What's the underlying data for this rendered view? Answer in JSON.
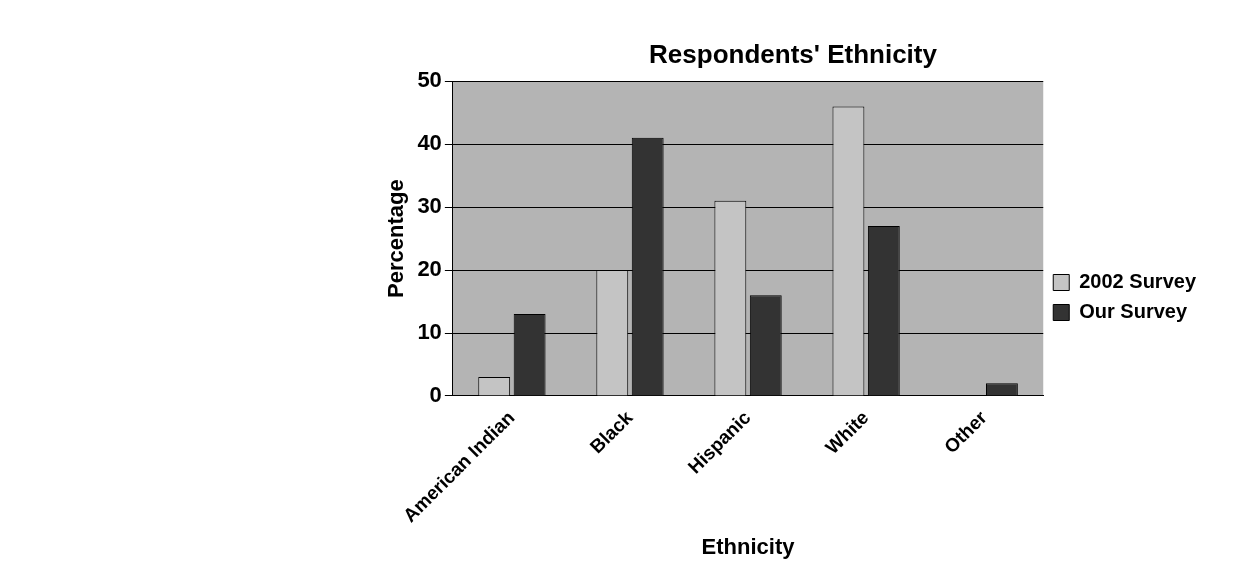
{
  "chart_data": {
    "type": "bar",
    "title": "Respondents' Ethnicity",
    "xlabel": "Ethnicity",
    "ylabel": "Percentage",
    "categories": [
      "American Indian",
      "Black",
      "Hispanic",
      "White",
      "Other"
    ],
    "series": [
      {
        "name": "2002 Survey",
        "color": "#c4c4c4",
        "values": [
          3,
          20,
          31,
          46,
          0
        ]
      },
      {
        "name": "Our Survey",
        "color": "#333333",
        "values": [
          13,
          41,
          16,
          27,
          2
        ]
      }
    ],
    "ylim": [
      0,
      50
    ],
    "yticks": [
      0,
      10,
      20,
      30,
      40,
      50
    ],
    "grid": "y",
    "legend": "right"
  }
}
